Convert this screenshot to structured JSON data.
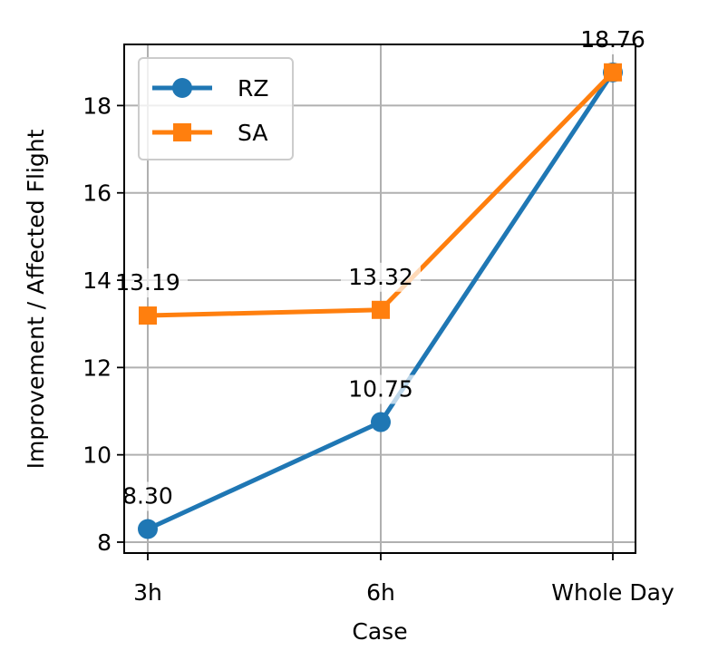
{
  "chart_data": {
    "type": "line",
    "xlabel": "Case",
    "ylabel": "Improvement / Affected Flight",
    "categories": [
      "3h",
      "6h",
      "Whole Day"
    ],
    "ylim": [
      7.75,
      19.4
    ],
    "yticks": [
      8,
      10,
      12,
      14,
      16,
      18
    ],
    "grid": true,
    "legend_position": "upper-left",
    "series": [
      {
        "name": "RZ",
        "color": "#1f77b4",
        "marker": "circle",
        "values": [
          8.3,
          10.75,
          18.76
        ],
        "labels": [
          "8.30",
          "10.75",
          "18.76"
        ]
      },
      {
        "name": "SA",
        "color": "#ff7f0e",
        "marker": "square",
        "values": [
          13.19,
          13.32,
          18.76
        ],
        "labels": [
          "13.19",
          "13.32",
          "18.76"
        ]
      }
    ]
  }
}
